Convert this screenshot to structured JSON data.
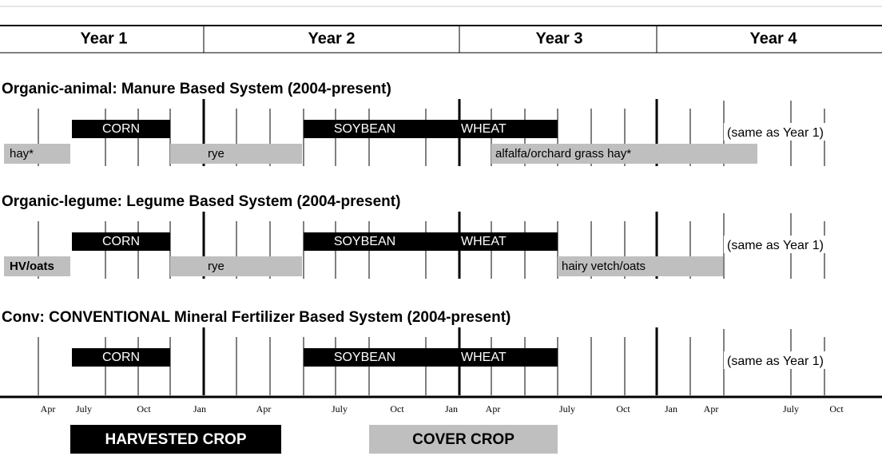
{
  "header": {
    "years": [
      "Year 1",
      "Year 2",
      "Year 3",
      "Year 4"
    ]
  },
  "sections": [
    {
      "title": "Organic-animal: Manure Based System (2004-present)",
      "harvested": [
        "CORN",
        "SOYBEAN",
        "WHEAT"
      ],
      "cover": [
        "hay*",
        "rye",
        "alfalfa/orchard grass hay*"
      ],
      "note": "(same as Year 1)"
    },
    {
      "title": "Organic-legume: Legume Based System (2004-present)",
      "harvested": [
        "CORN",
        "SOYBEAN",
        "WHEAT"
      ],
      "cover": [
        "HV/oats",
        "rye",
        "hairy vetch/oats"
      ],
      "note": "(same as Year 1)"
    },
    {
      "title": "Conv:  CONVENTIONAL Mineral Fertilizer Based System (2004-present)",
      "harvested": [
        "CORN",
        "SOYBEAN",
        "WHEAT"
      ],
      "cover": [],
      "note": "(same as Year 1)"
    }
  ],
  "axis": {
    "months": [
      "Apr",
      "July",
      "Oct",
      "Jan",
      "Apr",
      "July",
      "Oct",
      "Jan",
      "Apr",
      "July",
      "Oct",
      "Jan",
      "Apr",
      "July",
      "Oct"
    ]
  },
  "legend": {
    "harvested": "HARVESTED CROP",
    "cover": "COVER CROP"
  }
}
